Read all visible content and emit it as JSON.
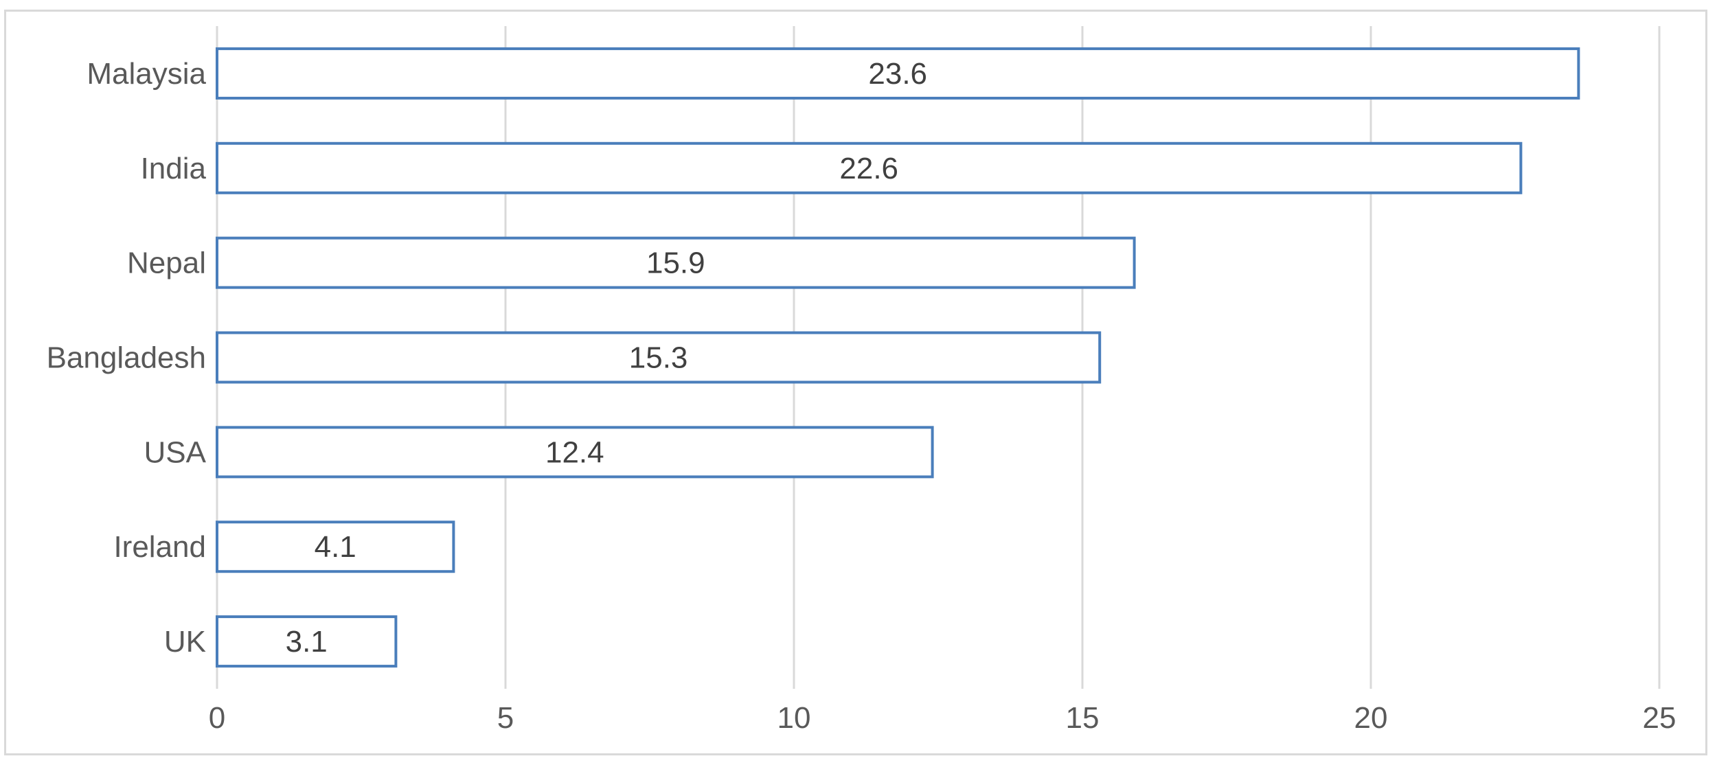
{
  "chart_data": {
    "type": "bar",
    "orientation": "horizontal",
    "title": "",
    "xlabel": "",
    "ylabel": "",
    "categories": [
      "Malaysia",
      "India",
      "Nepal",
      "Bangladesh",
      "USA",
      "Ireland",
      "UK"
    ],
    "values": [
      23.6,
      22.6,
      15.9,
      15.3,
      12.4,
      4.1,
      3.1
    ],
    "data_labels": [
      "23.6",
      "22.6",
      "15.9",
      "15.3",
      "12.4",
      "4.1",
      "3.1"
    ],
    "xlim": [
      0,
      25
    ],
    "xticks": [
      0,
      5,
      10,
      15,
      20,
      25
    ],
    "xtick_labels": [
      "0",
      "5",
      "10",
      "15",
      "20",
      "25"
    ],
    "grid": "vertical",
    "legend": "none",
    "colors": {
      "bar_fill": "#ffffff",
      "bar_stroke": "#4a7ebb",
      "grid": "#d9d9d9",
      "axis_text": "#595959",
      "label_text": "#404040"
    }
  }
}
